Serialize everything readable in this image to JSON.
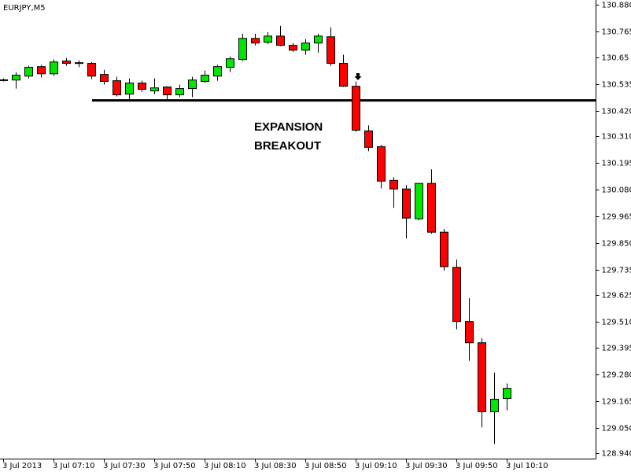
{
  "chart_data": {
    "type": "candlestick",
    "title": "EURJPY,M5",
    "annotations": [
      "EXPANSION",
      "BREAKOUT"
    ],
    "hline": 130.466,
    "up_color": "#00e600",
    "down_color": "#ff0000",
    "categories": [
      "3 Jul 2013",
      null,
      null,
      null,
      "3 Jul 07:10",
      null,
      null,
      null,
      "3 Jul 07:30",
      null,
      null,
      null,
      "3 Jul 07:50",
      null,
      null,
      null,
      "3 Jul 08:10",
      null,
      null,
      null,
      "3 Jul 08:30",
      null,
      null,
      null,
      "3 Jul 08:50",
      null,
      null,
      null,
      "3 Jul 09:10",
      null,
      null,
      null,
      "3 Jul 09:30",
      null,
      null,
      null,
      "3 Jul 09:50",
      null,
      null,
      null,
      "3 Jul 10:10"
    ],
    "open": [
      130.553,
      130.554,
      130.571,
      130.612,
      130.581,
      130.636,
      130.629,
      130.626,
      130.578,
      130.551,
      130.493,
      130.541,
      130.507,
      130.524,
      130.49,
      130.517,
      130.548,
      130.571,
      130.609,
      130.643,
      130.734,
      130.717,
      130.744,
      130.704,
      130.683,
      130.714,
      130.741,
      130.626,
      130.527,
      130.334,
      130.266,
      130.12,
      130.083,
      129.954,
      130.107,
      129.896,
      129.744,
      129.51,
      129.418,
      129.12,
      129.177
    ],
    "high": [
      130.561,
      130.588,
      130.615,
      130.619,
      130.643,
      130.649,
      130.639,
      130.632,
      130.598,
      130.568,
      130.561,
      130.551,
      130.561,
      130.527,
      130.534,
      130.568,
      130.595,
      130.619,
      130.656,
      130.754,
      130.754,
      130.761,
      130.788,
      130.714,
      130.731,
      130.754,
      130.782,
      130.663,
      130.548,
      130.358,
      130.273,
      130.134,
      130.1,
      130.107,
      130.168,
      129.91,
      129.778,
      129.611,
      129.438,
      129.289,
      129.242
    ],
    "low": [
      130.548,
      130.517,
      130.561,
      130.565,
      130.571,
      130.615,
      130.609,
      130.558,
      130.534,
      130.483,
      130.47,
      130.503,
      130.493,
      130.47,
      130.48,
      130.48,
      130.541,
      130.551,
      130.588,
      130.636,
      130.704,
      130.71,
      130.7,
      130.676,
      130.663,
      130.673,
      130.615,
      130.524,
      130.33,
      130.246,
      130.086,
      130.001,
      129.869,
      129.947,
      129.89,
      129.73,
      129.476,
      129.34,
      129.052,
      128.98,
      129.126
    ],
    "close": [
      130.555,
      130.575,
      130.609,
      130.581,
      130.632,
      130.626,
      130.626,
      130.571,
      130.548,
      130.49,
      130.541,
      130.514,
      130.52,
      130.49,
      130.517,
      130.554,
      130.575,
      130.612,
      130.646,
      130.734,
      130.714,
      130.744,
      130.704,
      130.683,
      130.714,
      130.744,
      130.626,
      130.527,
      130.337,
      130.263,
      130.117,
      130.083,
      129.957,
      130.107,
      129.896,
      129.747,
      129.51,
      129.418,
      129.12,
      129.174,
      129.221
    ],
    "ylim": [
      128.917,
      130.9
    ],
    "yticks": [
      {
        "value": 130.88,
        "label": "130.880"
      },
      130.765,
      130.65,
      130.535,
      {
        "value": 130.42,
        "label": "130.420"
      },
      {
        "value": 130.31,
        "label": "130.310"
      },
      130.195,
      {
        "value": 130.08,
        "label": "130.080"
      },
      129.965,
      {
        "value": 129.85,
        "label": "129.850"
      },
      129.735,
      129.625,
      {
        "value": 129.51,
        "label": "129.510"
      },
      129.395,
      {
        "value": 129.28,
        "label": "129.280"
      },
      129.165,
      {
        "value": 129.05,
        "label": "129.050"
      },
      {
        "value": 128.94,
        "label": "128.940"
      }
    ]
  }
}
